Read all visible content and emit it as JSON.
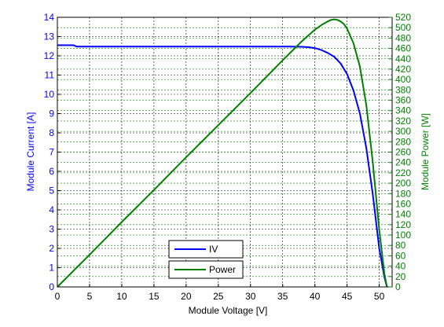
{
  "chart_data": {
    "type": "line",
    "xlabel": "Module Voltage [V]",
    "ylabel_left": "Module Current [A]",
    "ylabel_right": "Module Power [W]",
    "xlim": [
      0,
      52
    ],
    "ylim_left": [
      0,
      14
    ],
    "ylim_right": [
      0,
      520
    ],
    "x_ticks": [
      0,
      5,
      10,
      15,
      20,
      25,
      30,
      35,
      40,
      45,
      50
    ],
    "y_left_ticks": [
      0,
      1,
      2,
      3,
      4,
      5,
      6,
      7,
      8,
      9,
      10,
      11,
      12,
      13,
      14
    ],
    "y_right_ticks": [
      0,
      20,
      40,
      60,
      80,
      100,
      120,
      140,
      160,
      180,
      200,
      220,
      240,
      260,
      280,
      300,
      320,
      340,
      360,
      380,
      400,
      420,
      440,
      460,
      480,
      500,
      520
    ],
    "grid": true,
    "legend_placement": "bottom-center",
    "series": [
      {
        "name": "IV",
        "axis": "left",
        "color": "#0000ff",
        "x": [
          0,
          2.5,
          3,
          10,
          20,
          30,
          36,
          38,
          39,
          40,
          41,
          42,
          43,
          44,
          45,
          46,
          47,
          48,
          49,
          50,
          50.8,
          51.2
        ],
        "y": [
          12.55,
          12.55,
          12.48,
          12.48,
          12.48,
          12.48,
          12.48,
          12.47,
          12.45,
          12.4,
          12.3,
          12.15,
          11.95,
          11.6,
          11.05,
          10.2,
          9.0,
          7.2,
          4.8,
          2.0,
          0.5,
          0
        ]
      },
      {
        "name": "Power",
        "axis": "right",
        "color": "#008000",
        "x": [
          0,
          5,
          10,
          15,
          20,
          25,
          30,
          35,
          38,
          40,
          41,
          42,
          42.5,
          43,
          43.5,
          44,
          44.5,
          45,
          46,
          47,
          48,
          49,
          50,
          50.8,
          51.2
        ],
        "y": [
          0,
          62,
          125,
          187,
          250,
          312,
          374,
          437,
          474,
          496,
          505,
          512,
          515,
          516,
          515,
          512,
          507,
          498,
          470,
          425,
          350,
          240,
          110,
          25,
          0
        ]
      }
    ]
  }
}
